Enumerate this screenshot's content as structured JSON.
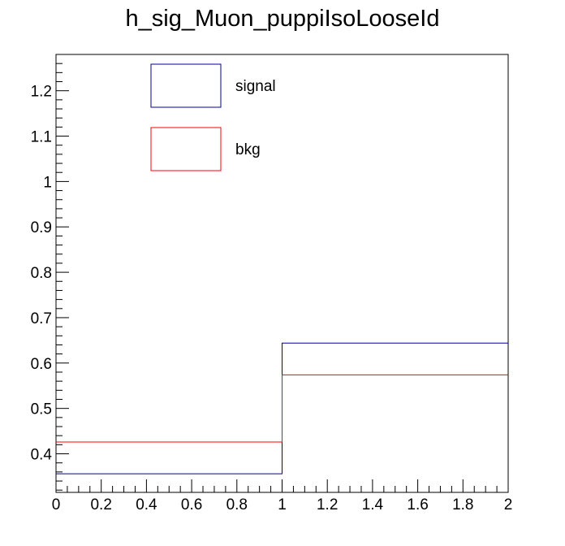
{
  "chart_data": {
    "type": "histogram",
    "title": "h_sig_Muon_puppiIsoLooseId",
    "xlabel": "",
    "ylabel": "",
    "xlim": [
      0,
      2
    ],
    "ylim": [
      0.315,
      1.28
    ],
    "bin_edges": [
      0,
      1,
      2
    ],
    "x_tick_labels": [
      "0",
      "0.2",
      "0.4",
      "0.6",
      "0.8",
      "1",
      "1.2",
      "1.4",
      "1.6",
      "1.8",
      "2"
    ],
    "y_tick_labels": [
      "0.4",
      "0.5",
      "0.6",
      "0.7",
      "0.8",
      "0.9",
      "1",
      "1.1",
      "1.2"
    ],
    "series": [
      {
        "name": "signal",
        "values": [
          0.356,
          0.644
        ],
        "color": "#000099"
      },
      {
        "name": "bkg",
        "values": [
          0.426,
          0.574
        ],
        "color": "#ff0000"
      }
    ],
    "legend_position": "top-left",
    "grid": false
  }
}
